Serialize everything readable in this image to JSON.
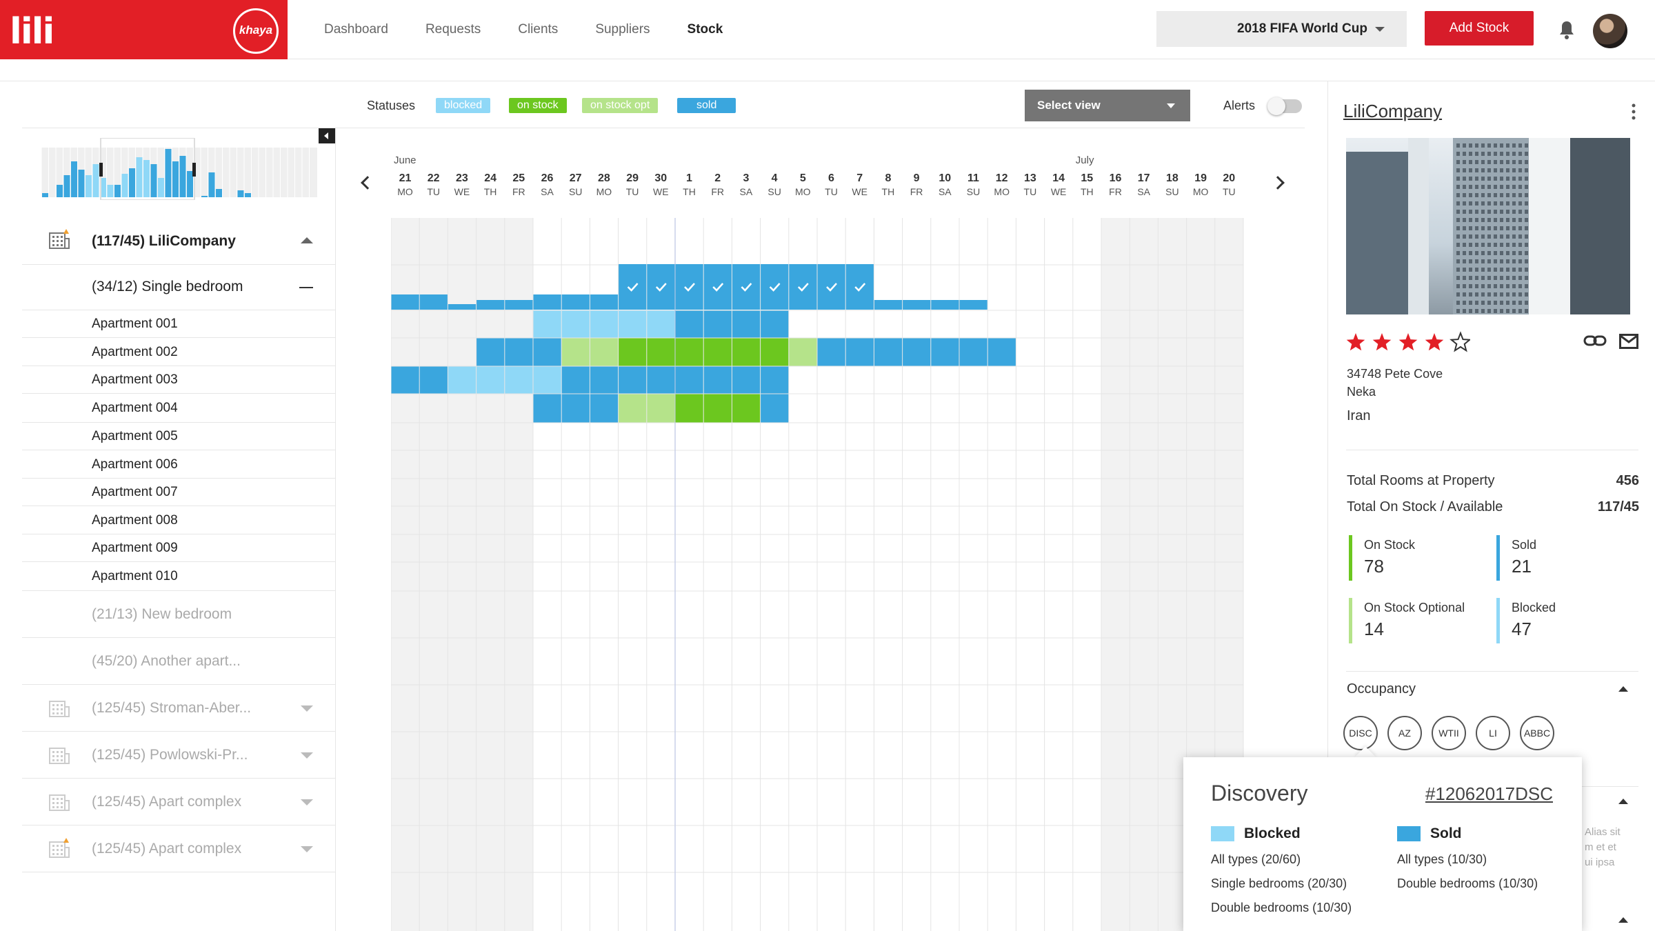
{
  "brand": {
    "logo": "lili",
    "badge": "khaya"
  },
  "nav": [
    "Dashboard",
    "Requests",
    "Clients",
    "Suppliers",
    "Stock"
  ],
  "nav_active": "Stock",
  "event": "2018 FIFA World Cup",
  "add_stock": "Add Stock",
  "statuses": {
    "label": "Statuses",
    "items": [
      {
        "label": "blocked",
        "color": "#8fd8f7"
      },
      {
        "label": "on stock",
        "color": "#6cc71f"
      },
      {
        "label": "on stock opt",
        "color": "#b5e38a"
      },
      {
        "label": "sold",
        "color": "#3aa6de"
      }
    ]
  },
  "select_view": "Select view",
  "alerts": "Alerts",
  "months": [
    {
      "label": "June",
      "col": 0
    },
    {
      "label": "July",
      "col": 24
    }
  ],
  "days": [
    {
      "n": "21",
      "w": "MO"
    },
    {
      "n": "22",
      "w": "TU"
    },
    {
      "n": "23",
      "w": "WE"
    },
    {
      "n": "24",
      "w": "TH"
    },
    {
      "n": "25",
      "w": "FR"
    },
    {
      "n": "26",
      "w": "SA"
    },
    {
      "n": "27",
      "w": "SU"
    },
    {
      "n": "28",
      "w": "MO"
    },
    {
      "n": "29",
      "w": "TU"
    },
    {
      "n": "30",
      "w": "WE"
    },
    {
      "n": "1",
      "w": "TH"
    },
    {
      "n": "2",
      "w": "FR"
    },
    {
      "n": "3",
      "w": "SA"
    },
    {
      "n": "4",
      "w": "SU"
    },
    {
      "n": "5",
      "w": "MO"
    },
    {
      "n": "6",
      "w": "TU"
    },
    {
      "n": "7",
      "w": "WE"
    },
    {
      "n": "8",
      "w": "TH"
    },
    {
      "n": "9",
      "w": "FR"
    },
    {
      "n": "10",
      "w": "SA"
    },
    {
      "n": "11",
      "w": "SU"
    },
    {
      "n": "12",
      "w": "MO"
    },
    {
      "n": "13",
      "w": "TU"
    },
    {
      "n": "14",
      "w": "WE"
    },
    {
      "n": "15",
      "w": "TH"
    },
    {
      "n": "16",
      "w": "FR"
    },
    {
      "n": "17",
      "w": "SA"
    },
    {
      "n": "18",
      "w": "SU"
    },
    {
      "n": "19",
      "w": "MO"
    },
    {
      "n": "20",
      "w": "TU"
    }
  ],
  "tree": {
    "company": "(117/45) LiliCompany",
    "room_type": "(34/12) Single bedroom",
    "apartments": [
      "Apartment 001",
      "Apartment 002",
      "Apartment 003",
      "Apartment 004",
      "Apartment 005",
      "Apartment 006",
      "Apartment 007",
      "Apartment 008",
      "Apartment 009",
      "Apartment 010"
    ],
    "other_types": [
      "(21/13) New bedroom",
      "(45/20) Another apart..."
    ],
    "other_properties": [
      "(125/45) Stroman-Aber...",
      "(125/45) Powlowski-Pr...",
      "(125/45) Apart complex",
      "(125/45) Apart complex"
    ]
  },
  "aggregate_row": {
    "sold_checked": [
      8,
      9,
      10,
      11,
      12,
      13,
      14,
      15,
      16
    ]
  },
  "apartment_rows": [
    {
      "cells": [
        null,
        null,
        null,
        null,
        null,
        "blocked",
        "blocked",
        "blocked",
        "blocked",
        "blocked",
        "sold",
        "sold",
        "sold",
        "sold"
      ]
    },
    {
      "cells": [
        null,
        null,
        null,
        "sold",
        "sold",
        "sold",
        "on_stock_opt",
        "on_stock_opt",
        "on_stock",
        "on_stock",
        "on_stock",
        "on_stock",
        "on_stock",
        "on_stock",
        "on_stock_opt",
        "sold",
        "sold",
        "sold",
        "sold",
        "sold",
        "sold",
        "sold"
      ]
    },
    {
      "cells": [
        "sold",
        "sold",
        "blocked",
        "blocked",
        "blocked",
        "blocked",
        "sold",
        "sold",
        "sold",
        "sold",
        "sold",
        "sold",
        "sold",
        "sold"
      ]
    },
    {
      "cells": [
        null,
        null,
        null,
        null,
        null,
        "sold",
        "sold",
        "sold",
        "on_stock_opt",
        "on_stock_opt",
        "on_stock",
        "on_stock",
        "on_stock",
        "sold"
      ]
    }
  ],
  "property": {
    "name": "LiliCompany",
    "rating": 4,
    "rating_max": 5,
    "address": [
      "34748 Pete Cove",
      "Neka",
      "Iran"
    ],
    "total_rooms_label": "Total Rooms at Property",
    "total_rooms": "456",
    "total_stock_label": "Total On Stock / Available",
    "total_stock": "117/45",
    "kpis": [
      {
        "label": "On Stock",
        "value": "78",
        "color": "#6cc71f"
      },
      {
        "label": "Sold",
        "value": "21",
        "color": "#3aa6de"
      },
      {
        "label": "On Stock Optional",
        "value": "14",
        "color": "#b5e38a"
      },
      {
        "label": "Blocked",
        "value": "47",
        "color": "#8fd8f7"
      }
    ],
    "occupancy_label": "Occupancy",
    "occupancy_circles": [
      "DISC",
      "AZ",
      "WTII",
      "LI",
      "ABBC"
    ],
    "side_text": [
      "Alias sit",
      "m et et",
      "ui ipsa"
    ]
  },
  "popover": {
    "title": "Discovery",
    "id": "#12062017DSC",
    "blocked": {
      "title": "Blocked",
      "lines": [
        "All types (20/60)",
        "Single bedrooms (20/30)",
        "Double bedrooms (10/30)"
      ]
    },
    "sold": {
      "title": "Sold",
      "lines": [
        "All types (10/30)",
        "Double bedrooms (10/30)"
      ]
    }
  },
  "colors": {
    "blocked": "#8fd8f7",
    "sold": "#3aa6de",
    "on_stock": "#6cc71f",
    "on_stock_opt": "#b5e38a",
    "brand": "#e21f26"
  }
}
